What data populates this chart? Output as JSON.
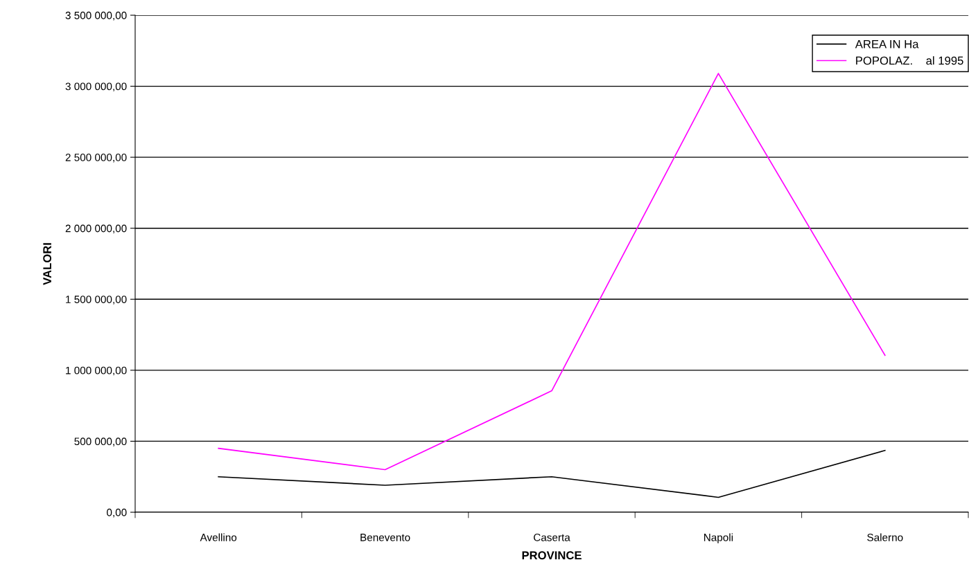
{
  "chart_data": {
    "type": "line",
    "xlabel": "PROVINCE",
    "ylabel": "VALORI",
    "categories": [
      "Avellino",
      "Benevento",
      "Caserta",
      "Napoli",
      "Salerno"
    ],
    "series": [
      {
        "name": "AREA IN Ha",
        "color": "#000000",
        "values": [
          250000,
          190000,
          250000,
          105000,
          435000
        ]
      },
      {
        "name": "POPOLAZ.    al 1995",
        "color": "#ff00ff",
        "values": [
          450000,
          300000,
          855000,
          3090000,
          1105000
        ]
      }
    ],
    "ylim": [
      0,
      3500000
    ],
    "yticks": [
      {
        "value": 0,
        "label": "0,00"
      },
      {
        "value": 500000,
        "label": "500 000,00"
      },
      {
        "value": 1000000,
        "label": "1 000 000,00"
      },
      {
        "value": 1500000,
        "label": "1 500 000,00"
      },
      {
        "value": 2000000,
        "label": "2 000 000,00"
      },
      {
        "value": 2500000,
        "label": "2 500 000,00"
      },
      {
        "value": 3000000,
        "label": "3 000 000,00"
      },
      {
        "value": 3500000,
        "label": "3 500 000,00"
      }
    ],
    "grid": "y",
    "legend": "top right",
    "marker": "none",
    "line_style": "solid"
  }
}
